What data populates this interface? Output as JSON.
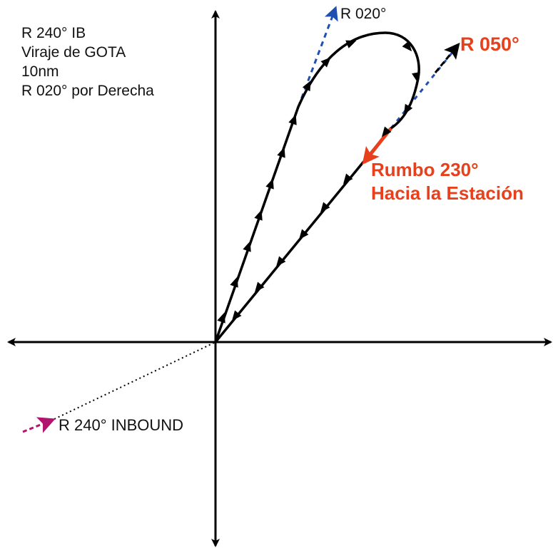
{
  "procedure": {
    "lines": [
      "R 240° IB",
      "Viraje de GOTA",
      "10nm",
      "R 020° por Derecha"
    ]
  },
  "labels": {
    "outbound_radial": "R 020°",
    "return_radial": "R 050°",
    "heading_line1": "Rumbo 230°",
    "heading_line2": "Hacia la Estación",
    "inbound": "R 240° INBOUND"
  },
  "colors": {
    "track": "#000000",
    "outbound_radial": "#1f4fb0",
    "return_highlight": "#e8401c",
    "inbound": "#b0146e",
    "axes": "#000000"
  }
}
